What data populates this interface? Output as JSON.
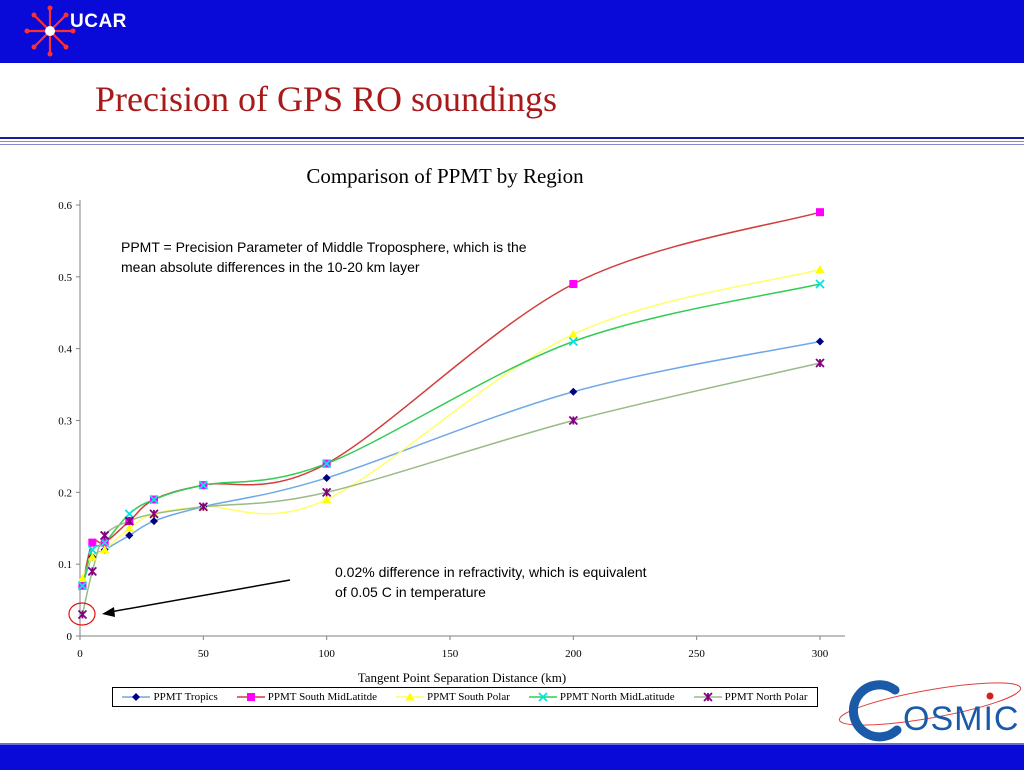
{
  "header": {
    "brand": "UCAR",
    "slide_title": "Precision of GPS RO soundings"
  },
  "colors": {
    "band": "#0a0ad8",
    "title": "#a81a1a"
  },
  "annotations": {
    "ppmt_definition": "PPMT = Precision Parameter of Middle Troposphere, which is the mean absolute differences in the 10-20 km layer",
    "refractivity_note": "0.02% difference in refractivity, which is equivalent of  0.05 C in temperature"
  },
  "footer_logo": {
    "text": "OSMIC",
    "icon": "cosmic-logo"
  },
  "chart_data": {
    "type": "line",
    "title": "Comparison of PPMT by Region",
    "xlabel": "Tangent Point Separation Distance (km)",
    "ylabel": "",
    "xlim": [
      0,
      300
    ],
    "ylim": [
      0,
      0.6
    ],
    "x_ticks": [
      "0",
      "50",
      "100",
      "150",
      "200",
      "250",
      "300"
    ],
    "y_ticks": [
      "0",
      "0.1",
      "0.2",
      "0.3",
      "0.4",
      "0.5",
      "0.6"
    ],
    "legend_position": "bottom",
    "series": [
      {
        "name": "PPMT Tropics",
        "color": "#6fa8e8",
        "marker_color": "#000080",
        "marker": "diamond",
        "x": [
          1,
          5,
          10,
          20,
          30,
          50,
          100,
          200,
          300
        ],
        "values": [
          0.07,
          0.11,
          0.12,
          0.14,
          0.16,
          0.18,
          0.22,
          0.34,
          0.41
        ]
      },
      {
        "name": "PPMT South MidLatitde",
        "color": "#d23c3c",
        "marker_color": "#ff00ff",
        "marker": "square",
        "x": [
          1,
          5,
          10,
          20,
          30,
          50,
          100,
          200,
          300
        ],
        "values": [
          0.07,
          0.13,
          0.13,
          0.16,
          0.19,
          0.21,
          0.24,
          0.49,
          0.59
        ]
      },
      {
        "name": "PPMT South Polar",
        "color": "#ffff66",
        "marker_color": "#ffff00",
        "marker": "triangle",
        "x": [
          1,
          5,
          10,
          20,
          30,
          50,
          100,
          200,
          300
        ],
        "values": [
          0.08,
          0.11,
          0.12,
          0.15,
          0.17,
          0.18,
          0.19,
          0.42,
          0.51
        ]
      },
      {
        "name": "PPMT North MidLatitude",
        "color": "#33cc55",
        "marker_color": "#00e5e5",
        "marker": "x",
        "x": [
          1,
          5,
          10,
          20,
          30,
          50,
          100,
          200,
          300
        ],
        "values": [
          0.07,
          0.12,
          0.13,
          0.17,
          0.19,
          0.21,
          0.24,
          0.41,
          0.49
        ]
      },
      {
        "name": "PPMT North Polar",
        "color": "#99bb88",
        "marker_color": "#800080",
        "marker": "star",
        "x": [
          1,
          5,
          10,
          20,
          30,
          50,
          100,
          200,
          300
        ],
        "values": [
          0.03,
          0.09,
          0.14,
          0.16,
          0.17,
          0.18,
          0.2,
          0.3,
          0.38
        ]
      }
    ]
  }
}
